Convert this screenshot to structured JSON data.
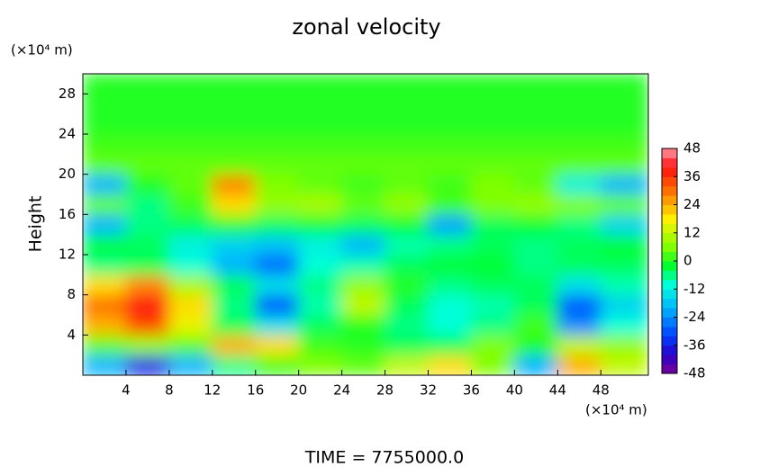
{
  "chart_data": {
    "type": "contour",
    "title": "zonal velocity",
    "ylabel": "Height",
    "x_unit": "(×10⁴ m)",
    "y_unit": "(×10⁴ m)",
    "footer": "TIME = 7755000.0",
    "xlim": [
      0,
      52.4
    ],
    "ylim": [
      0,
      30
    ],
    "xticks": [
      4,
      8,
      12,
      16,
      20,
      24,
      28,
      32,
      36,
      40,
      44,
      48
    ],
    "yticks": [
      4,
      8,
      12,
      16,
      20,
      24,
      28
    ],
    "x": [
      2,
      6,
      10,
      14,
      18,
      22,
      26,
      30,
      34,
      38,
      42,
      46,
      50
    ],
    "y": [
      1,
      3,
      5,
      7,
      9,
      11,
      13,
      15,
      17,
      19,
      21,
      23,
      25,
      27,
      29
    ],
    "z": [
      [
        -20,
        -36,
        -20,
        -6,
        2,
        6,
        4,
        12,
        20,
        6,
        -20,
        24,
        12
      ],
      [
        4,
        8,
        4,
        24,
        20,
        2,
        0,
        -4,
        -4,
        6,
        0,
        12,
        8
      ],
      [
        24,
        34,
        16,
        -4,
        -14,
        -4,
        0,
        -6,
        -10,
        -6,
        2,
        -24,
        -10
      ],
      [
        30,
        40,
        20,
        -6,
        -30,
        -8,
        12,
        -4,
        -10,
        -8,
        -4,
        -30,
        -16
      ],
      [
        20,
        28,
        10,
        -4,
        -14,
        -6,
        8,
        0,
        -6,
        -4,
        -4,
        -14,
        -8
      ],
      [
        -6,
        -4,
        -10,
        -20,
        -28,
        -10,
        -8,
        -4,
        -2,
        -2,
        -6,
        -4,
        -4
      ],
      [
        -2,
        -4,
        -12,
        -16,
        -18,
        -12,
        -20,
        -8,
        -6,
        -4,
        -6,
        -4,
        -2
      ],
      [
        -20,
        -6,
        -4,
        0,
        -4,
        -2,
        -4,
        -2,
        -22,
        -4,
        -2,
        -6,
        -16
      ],
      [
        4,
        -6,
        2,
        20,
        8,
        10,
        4,
        8,
        2,
        6,
        8,
        6,
        4
      ],
      [
        -20,
        0,
        4,
        28,
        6,
        4,
        2,
        4,
        2,
        6,
        4,
        -12,
        -20
      ],
      [
        4,
        4,
        4,
        4,
        4,
        4,
        4,
        4,
        4,
        4,
        4,
        4,
        4
      ],
      [
        2,
        2,
        2,
        2,
        2,
        2,
        2,
        2,
        2,
        2,
        2,
        2,
        2
      ],
      [
        0,
        0,
        0,
        0,
        0,
        0,
        0,
        0,
        0,
        0,
        0,
        0,
        0
      ],
      [
        0,
        0,
        0,
        0,
        0,
        0,
        0,
        0,
        0,
        0,
        0,
        0,
        0
      ],
      [
        0,
        0,
        0,
        0,
        0,
        0,
        0,
        0,
        0,
        0,
        0,
        0,
        0
      ]
    ],
    "colorbar": {
      "lim": [
        -48,
        48
      ],
      "ticks": [
        -48,
        -36,
        -24,
        -12,
        0,
        12,
        24,
        36,
        48
      ]
    },
    "colorscale": [
      [
        -48,
        "#7a0099"
      ],
      [
        -40,
        "#2a00c8"
      ],
      [
        -32,
        "#0040ff"
      ],
      [
        -20,
        "#00b4ff"
      ],
      [
        -10,
        "#00ffd8"
      ],
      [
        -2,
        "#00ff30"
      ],
      [
        6,
        "#80ff00"
      ],
      [
        18,
        "#fff000"
      ],
      [
        30,
        "#ff7000"
      ],
      [
        40,
        "#ff1010"
      ],
      [
        48,
        "#ff9aa8"
      ]
    ]
  }
}
